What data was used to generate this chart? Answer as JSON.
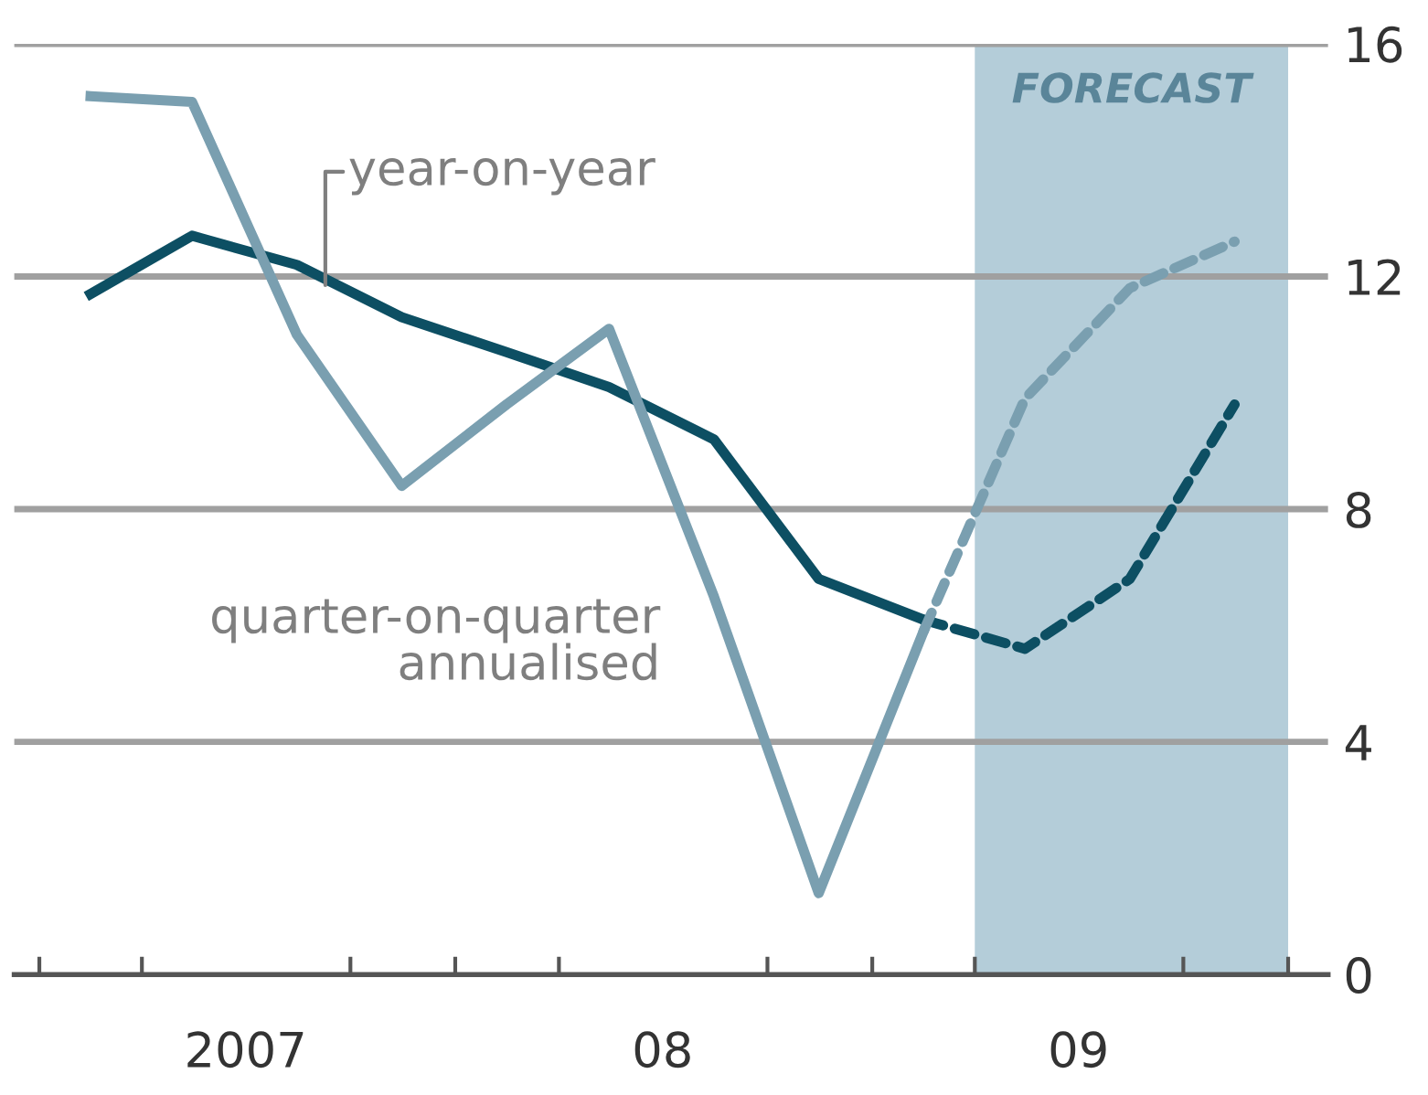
{
  "chart_data": {
    "type": "line",
    "x": [
      "2007-02-15",
      "2007-05-15",
      "2007-08-15",
      "2007-11-15",
      "2008-02-15",
      "2008-05-15",
      "2008-08-15",
      "2008-11-15",
      "2009-02-15"
    ],
    "series": [
      {
        "name": "year-on-year",
        "color": "#0d4f63",
        "values": [
          11.7,
          12.7,
          12.2,
          11.3,
          10.7,
          10.1,
          9.2,
          6.8,
          6.1
        ]
      },
      {
        "name": "quarter-on-quarter annualised",
        "color": "#7a9fb0",
        "values": [
          15.1,
          15.0,
          11.0,
          8.4,
          9.8,
          11.1,
          6.5,
          1.4,
          5.9
        ]
      },
      {
        "color": "#0d4f63",
        "line_style": "dashed",
        "x": [
          "2009-02-15",
          "2009-05-15",
          "2009-08-15",
          "2009-11-15"
        ],
        "values": [
          6.1,
          5.6,
          6.8,
          9.8
        ]
      },
      {
        "color": "#7a9fb0",
        "line_style": "dashed",
        "x": [
          "2009-02-15",
          "2009-05-15",
          "2009-08-15",
          "2009-11-15"
        ],
        "values": [
          5.9,
          9.9,
          11.8,
          12.6
        ]
      }
    ],
    "xlim": [
      "2006-12-10",
      "2010-02-05"
    ],
    "xticks": [
      {
        "value": "2007-01-01",
        "label": null
      },
      {
        "value": "2007-04-01",
        "label": null
      },
      {
        "value": "2007-07-01",
        "label": "2007"
      },
      {
        "value": "2007-10-01",
        "label": null
      },
      {
        "value": "2008-01-01",
        "label": null
      },
      {
        "value": "2008-04-01",
        "label": null
      },
      {
        "value": "2008-07-01",
        "label": "08"
      },
      {
        "value": "2008-10-01",
        "label": null
      },
      {
        "value": "2009-01-01",
        "label": null
      },
      {
        "value": "2009-04-01",
        "label": null
      },
      {
        "value": "2009-07-01",
        "label": "09"
      },
      {
        "value": "2009-10-01",
        "label": null
      },
      {
        "value": "2010-01-01",
        "label": null
      }
    ],
    "ylim": [
      0,
      16
    ],
    "yticks": [
      0,
      4,
      8,
      12,
      16
    ],
    "grid": "y",
    "line_style": "solid",
    "marker": "none",
    "bands": [
      {
        "axis": "x",
        "from": "2009-04-01",
        "to": "2010-01-01",
        "label": "FORECAST",
        "color": "#b4cdd9"
      }
    ]
  }
}
